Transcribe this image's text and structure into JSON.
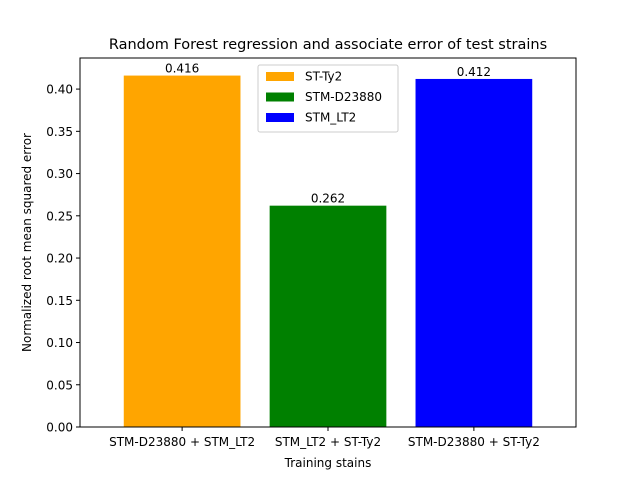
{
  "chart_data": {
    "type": "bar",
    "title": "Random Forest regression and associate error of test strains",
    "xlabel": "Training stains",
    "ylabel": "Normalized root mean squared error",
    "categories": [
      "STM-D23880 + STM_LT2",
      "STM_LT2 + ST-Ty2",
      "STM-D23880 + ST-Ty2"
    ],
    "values": [
      0.416,
      0.262,
      0.412
    ],
    "data_labels": [
      "0.416",
      "0.262",
      "0.412"
    ],
    "bar_colors": [
      "#FFA500",
      "#008000",
      "#0000FF"
    ],
    "ylim": [
      0,
      0.4368
    ],
    "yticks": [
      0.0,
      0.05,
      0.1,
      0.15,
      0.2,
      0.25,
      0.3,
      0.35,
      0.4
    ],
    "ytick_labels": [
      "0.00",
      "0.05",
      "0.10",
      "0.15",
      "0.20",
      "0.25",
      "0.30",
      "0.35",
      "0.40"
    ],
    "grid": false,
    "legend": {
      "placement": "top-center",
      "entries": [
        {
          "label": "ST-Ty2",
          "color": "#FFA500"
        },
        {
          "label": "STM-D23880",
          "color": "#008000"
        },
        {
          "label": "STM_LT2",
          "color": "#0000FF"
        }
      ]
    }
  }
}
